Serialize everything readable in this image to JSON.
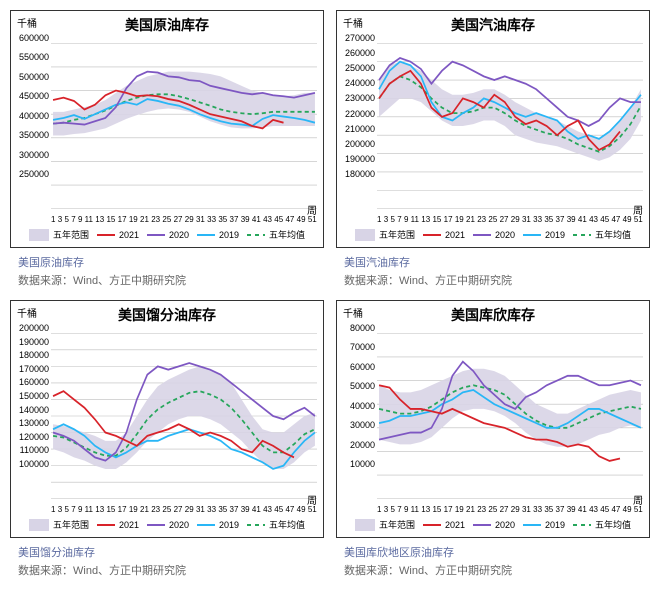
{
  "global": {
    "y_unit_label": "千桶",
    "x_unit_label": "周",
    "source_prefix": "数据来源：",
    "source_text": "Wind、方正中期研究院",
    "x_ticks": [
      1,
      3,
      5,
      7,
      9,
      11,
      13,
      15,
      17,
      19,
      21,
      23,
      25,
      27,
      29,
      31,
      33,
      35,
      37,
      39,
      41,
      43,
      45,
      47,
      49,
      51
    ],
    "legend": {
      "range": "五年范围",
      "y2021": "2021",
      "y2020": "2020",
      "y2019": "2019",
      "mean": "五年均值"
    },
    "colors": {
      "range_fill": "#d8d4e6",
      "y2021": "#d8232a",
      "y2020": "#7e57c2",
      "y2019": "#29b6f6",
      "mean": "#26a65b",
      "grid": "#bdbdbd",
      "axis": "#7f7f7f",
      "text": "#000000"
    },
    "font_sizes": {
      "title": 14,
      "tick": 9,
      "legend": 9,
      "caption": 11
    }
  },
  "charts": [
    {
      "id": "crude",
      "title": "美国原油库存",
      "caption": "美国原油库存",
      "type": "line_band",
      "ylim": [
        250000,
        600000
      ],
      "ytick_step": 50000,
      "range_upper": [
        455000,
        455000,
        460000,
        465000,
        470000,
        480000,
        495000,
        510000,
        520000,
        530000,
        535000,
        540000,
        540000,
        540000,
        538000,
        535000,
        530000,
        520000,
        510000,
        500000,
        495000,
        490000,
        488000,
        490000,
        495000,
        495000
      ],
      "range_lower": [
        405000,
        405000,
        408000,
        410000,
        415000,
        420000,
        430000,
        440000,
        448000,
        455000,
        460000,
        462000,
        460000,
        455000,
        445000,
        435000,
        428000,
        422000,
        420000,
        420000,
        422000,
        425000,
        425000,
        425000,
        425000,
        425000
      ],
      "series": {
        "y2021": [
          480000,
          485000,
          478000,
          460000,
          470000,
          490000,
          500000,
          495000,
          488000,
          490000,
          488000,
          482000,
          478000,
          470000,
          460000,
          450000,
          445000,
          440000,
          435000,
          425000,
          420000,
          438000,
          432000
        ],
        "y2020": [
          430000,
          432000,
          430000,
          428000,
          435000,
          442000,
          465000,
          505000,
          530000,
          540000,
          538000,
          530000,
          528000,
          522000,
          520000,
          510000,
          505000,
          500000,
          495000,
          492000,
          495000,
          490000,
          488000,
          485000,
          490000,
          495000
        ],
        "y2019": [
          438000,
          442000,
          448000,
          440000,
          450000,
          460000,
          470000,
          475000,
          470000,
          482000,
          478000,
          472000,
          468000,
          460000,
          450000,
          442000,
          435000,
          430000,
          428000,
          425000,
          440000,
          448000,
          445000,
          442000,
          438000,
          432000
        ],
        "mean": [
          430000,
          432000,
          438000,
          442000,
          450000,
          458000,
          468000,
          478000,
          485000,
          490000,
          492000,
          492000,
          488000,
          482000,
          475000,
          468000,
          460000,
          455000,
          452000,
          450000,
          452000,
          455000,
          455000,
          455000,
          455000,
          455000
        ]
      }
    },
    {
      "id": "gasoline",
      "title": "美国汽油库存",
      "caption": "美国汽油库存",
      "type": "line_band",
      "ylim": [
        180000,
        270000
      ],
      "ytick_step": 10000,
      "range_upper": [
        250000,
        258000,
        260000,
        258000,
        255000,
        250000,
        245000,
        242000,
        242000,
        243000,
        245000,
        245000,
        242000,
        238000,
        235000,
        232000,
        230000,
        228000,
        225000,
        222000,
        220000,
        218000,
        222000,
        228000,
        235000,
        245000
      ],
      "range_lower": [
        230000,
        235000,
        240000,
        240000,
        238000,
        233000,
        228000,
        225000,
        225000,
        226000,
        228000,
        228000,
        225000,
        220000,
        218000,
        216000,
        215000,
        214000,
        212000,
        210000,
        208000,
        206000,
        208000,
        212000,
        218000,
        228000
      ],
      "series": {
        "y2021": [
          240000,
          248000,
          252000,
          255000,
          248000,
          235000,
          230000,
          232000,
          240000,
          238000,
          235000,
          242000,
          238000,
          230000,
          226000,
          228000,
          225000,
          220000,
          225000,
          228000,
          218000,
          212000,
          215000,
          222000
        ],
        "y2020": [
          250000,
          258000,
          262000,
          260000,
          256000,
          248000,
          255000,
          260000,
          258000,
          255000,
          252000,
          250000,
          252000,
          250000,
          248000,
          245000,
          240000,
          235000,
          230000,
          228000,
          225000,
          228000,
          235000,
          240000,
          238000,
          238000
        ],
        "y2019": [
          245000,
          255000,
          260000,
          258000,
          252000,
          238000,
          230000,
          228000,
          232000,
          235000,
          240000,
          238000,
          235000,
          232000,
          230000,
          232000,
          230000,
          228000,
          222000,
          218000,
          220000,
          218000,
          222000,
          228000,
          235000,
          242000
        ],
        "mean": [
          240000,
          248000,
          252000,
          250000,
          246000,
          240000,
          235000,
          232000,
          232000,
          233000,
          235000,
          235000,
          232000,
          228000,
          225000,
          223000,
          221000,
          220000,
          218000,
          215000,
          213000,
          211000,
          214000,
          219000,
          226000,
          236000
        ]
      }
    },
    {
      "id": "distillate",
      "title": "美国馏分油库存",
      "caption": "美国馏分油库存",
      "type": "line_band",
      "ylim": [
        100000,
        200000
      ],
      "ytick_step": 10000,
      "range_upper": [
        145000,
        144000,
        142000,
        140000,
        138000,
        135000,
        135000,
        140000,
        150000,
        160000,
        168000,
        172000,
        175000,
        178000,
        180000,
        178000,
        175000,
        170000,
        160000,
        150000,
        142000,
        140000,
        140000,
        145000,
        150000,
        152000
      ],
      "range_lower": [
        130000,
        128000,
        125000,
        123000,
        120000,
        118000,
        118000,
        122000,
        128000,
        135000,
        140000,
        145000,
        148000,
        150000,
        150000,
        148000,
        145000,
        140000,
        135000,
        128000,
        122000,
        118000,
        118000,
        122000,
        128000,
        132000
      ],
      "series": {
        "y2021": [
          162000,
          165000,
          160000,
          155000,
          148000,
          140000,
          138000,
          135000,
          132000,
          138000,
          140000,
          142000,
          145000,
          142000,
          138000,
          140000,
          138000,
          135000,
          130000,
          128000,
          135000,
          132000,
          128000,
          125000
        ],
        "y2020": [
          140000,
          138000,
          135000,
          130000,
          125000,
          123000,
          128000,
          140000,
          160000,
          175000,
          180000,
          178000,
          180000,
          182000,
          180000,
          178000,
          175000,
          170000,
          165000,
          160000,
          155000,
          150000,
          148000,
          152000,
          155000,
          150000
        ],
        "y2019": [
          142000,
          145000,
          142000,
          138000,
          132000,
          128000,
          125000,
          128000,
          132000,
          135000,
          135000,
          138000,
          140000,
          142000,
          140000,
          138000,
          135000,
          130000,
          128000,
          125000,
          122000,
          118000,
          120000,
          128000,
          135000,
          140000
        ],
        "mean": [
          138000,
          137000,
          134000,
          131000,
          128000,
          126000,
          126000,
          131000,
          139000,
          148000,
          154000,
          158000,
          161000,
          164000,
          165000,
          163000,
          160000,
          155000,
          148000,
          140000,
          132000,
          128000,
          128000,
          133000,
          139000,
          142000
        ]
      }
    },
    {
      "id": "cushing",
      "title": "美国库欣库存",
      "caption": "美国库欣地区原油库存",
      "type": "line_band",
      "ylim": [
        10000,
        80000
      ],
      "ytick_step": 10000,
      "range_upper": [
        58000,
        56000,
        55000,
        55000,
        56000,
        58000,
        60000,
        62000,
        64000,
        65000,
        65000,
        64000,
        62000,
        58000,
        54000,
        50000,
        48000,
        46000,
        46000,
        48000,
        50000,
        52000,
        54000,
        55000,
        56000,
        55000
      ],
      "range_lower": [
        35000,
        34000,
        33000,
        33000,
        34000,
        36000,
        40000,
        44000,
        47000,
        48000,
        48000,
        47000,
        45000,
        42000,
        38000,
        35000,
        33000,
        32000,
        32000,
        33000,
        35000,
        37000,
        38000,
        40000,
        41000,
        40000
      ],
      "series": {
        "y2021": [
          58000,
          57000,
          52000,
          48000,
          48000,
          47000,
          46000,
          48000,
          46000,
          44000,
          42000,
          41000,
          40000,
          38000,
          36000,
          35000,
          35000,
          34000,
          32000,
          33000,
          32000,
          28000,
          26000,
          27000
        ],
        "y2020": [
          35000,
          36000,
          37000,
          38000,
          38000,
          40000,
          48000,
          62000,
          68000,
          64000,
          58000,
          54000,
          50000,
          48000,
          53000,
          55000,
          58000,
          60000,
          62000,
          62000,
          60000,
          58000,
          58000,
          59000,
          60000,
          58000
        ],
        "y2019": [
          42000,
          43000,
          45000,
          45000,
          46000,
          47000,
          50000,
          52000,
          55000,
          56000,
          53000,
          50000,
          48000,
          46000,
          44000,
          42000,
          40000,
          40000,
          42000,
          45000,
          48000,
          48000,
          46000,
          44000,
          42000,
          40000
        ],
        "mean": [
          48000,
          47000,
          46000,
          46000,
          47000,
          49000,
          52000,
          55000,
          57000,
          58000,
          57000,
          56000,
          54000,
          50000,
          46000,
          43000,
          41000,
          40000,
          40000,
          42000,
          44000,
          46000,
          47000,
          48000,
          49000,
          48000
        ]
      }
    }
  ]
}
